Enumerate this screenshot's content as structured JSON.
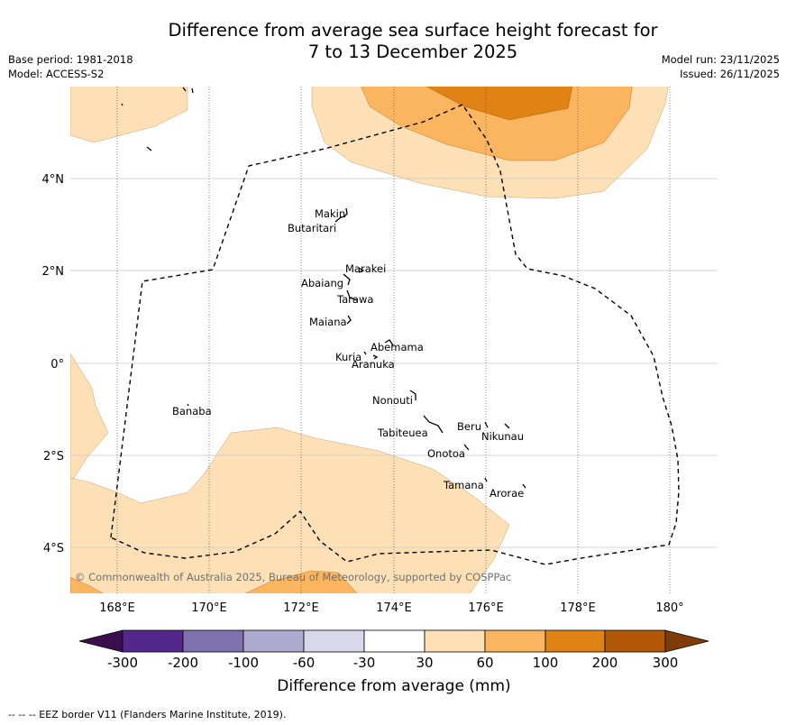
{
  "header": {
    "title_line1": "Difference from average sea surface height forecast for",
    "title_line2": "7 to 13 December 2025",
    "base_period": "Base period: 1981-2018",
    "model": "Model: ACCESS-S2",
    "model_run": "Model run: 23/11/2025",
    "issued": "Issued: 26/11/2025"
  },
  "map": {
    "lon_labels": [
      "168°E",
      "170°E",
      "172°E",
      "174°E",
      "176°E",
      "178°E",
      "180°"
    ],
    "lat_labels": [
      "4°N",
      "2°N",
      "0°",
      "2°S",
      "4°S"
    ],
    "copyright": "© Commonwealth of Australia 2025, Bureau of Meteorology, supported by COSPPac",
    "islands": [
      "Makin",
      "Butaritari",
      "Marakei",
      "Abaiang",
      "Tarawa",
      "Maiana",
      "Abemama",
      "Kuria",
      "Aranuka",
      "Nonouti",
      "Banaba",
      "Tabiteuea",
      "Beru",
      "Nikunau",
      "Onotoa",
      "Tamana",
      "Arorae"
    ]
  },
  "colorbar": {
    "tick_labels": [
      "-300",
      "-200",
      "-100",
      "-60",
      "-30",
      "30",
      "60",
      "100",
      "200",
      "300"
    ],
    "colors": [
      "#3b0f4f",
      "#54278f",
      "#7f71ad",
      "#aeaacf",
      "#d8d8ec",
      "#ffffff",
      "#fde0b6",
      "#fbb55e",
      "#e08214",
      "#b35806",
      "#7f3b08"
    ],
    "title": "Difference from average (mm)"
  },
  "legend": {
    "eez_note": "--  --  -- EEZ border V11 (Flanders Marine Institute, 2019)."
  }
}
